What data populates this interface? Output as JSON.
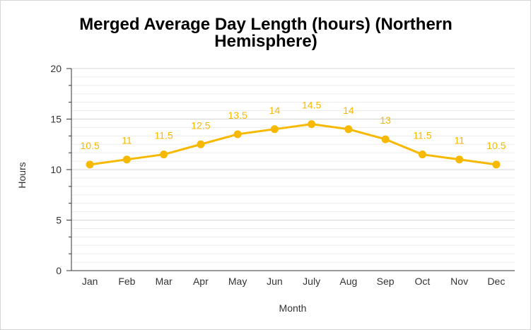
{
  "chart_data": {
    "type": "line",
    "title": "Merged Average Day Length (hours) (Northern Hemisphere)",
    "xlabel": "Month",
    "ylabel": "Hours",
    "categories": [
      "Jan",
      "Feb",
      "Mar",
      "Apr",
      "May",
      "Jun",
      "July",
      "Aug",
      "Sep",
      "Oct",
      "Nov",
      "Dec"
    ],
    "values": [
      10.5,
      11,
      11.5,
      12.5,
      13.5,
      14,
      14.5,
      14,
      13,
      11.5,
      11,
      10.5
    ],
    "data_labels": [
      "10.5",
      "11",
      "11.5",
      "12.5",
      "13.5",
      "14",
      "14.5",
      "14",
      "13",
      "11.5",
      "11",
      "10.5"
    ],
    "ylim": [
      0,
      20
    ],
    "yticks": [
      "0",
      "5",
      "10",
      "15",
      "20"
    ],
    "grid": true,
    "legend": "none",
    "color": "#f7b900"
  }
}
